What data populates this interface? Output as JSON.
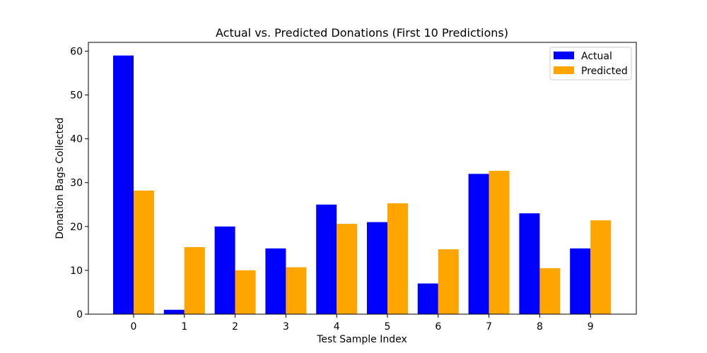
{
  "chart_data": {
    "type": "bar",
    "title": "Actual vs. Predicted Donations (First 10 Predictions)",
    "xlabel": "Test Sample Index",
    "ylabel": "Donation Bags Collected",
    "categories": [
      "0",
      "1",
      "2",
      "3",
      "4",
      "5",
      "6",
      "7",
      "8",
      "9"
    ],
    "series": [
      {
        "name": "Actual",
        "color": "#0000ff",
        "values": [
          59,
          1,
          20,
          15,
          25,
          21,
          7,
          32,
          23,
          15
        ]
      },
      {
        "name": "Predicted",
        "color": "#ffa500",
        "values": [
          28.2,
          15.3,
          10.0,
          10.7,
          20.6,
          25.3,
          14.8,
          32.7,
          10.5,
          21.4
        ]
      }
    ],
    "ylim": [
      0,
      62
    ],
    "yticks": [
      0,
      10,
      20,
      30,
      40,
      50,
      60
    ],
    "legend_position": "upper-right",
    "grid": false
  }
}
